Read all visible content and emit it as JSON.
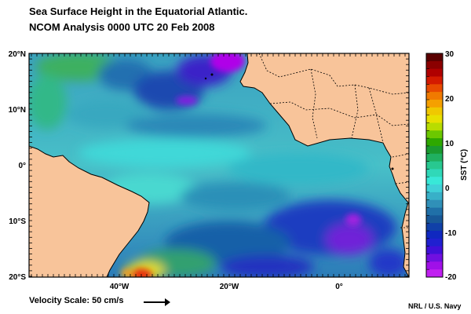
{
  "title_line1": "Sea Surface Height in the Equatorial Atlantic.",
  "title_line2": "NCOM Analysis 0000 UTC 20 Feb 2008",
  "lat_labels": [
    "20°N",
    "10°N",
    "0°",
    "10°S",
    "20°S"
  ],
  "lon_labels": [
    "40°W",
    "20°W",
    "0°"
  ],
  "colorbar": {
    "label": "SST (°C)",
    "tick_labels": [
      "30",
      "20",
      "10",
      "0",
      "-10",
      "-20"
    ],
    "colors": [
      "#5a0000",
      "#8b0000",
      "#b00000",
      "#d41a00",
      "#e84a00",
      "#f07a00",
      "#f5a000",
      "#f0c800",
      "#e8e000",
      "#b8dc00",
      "#6cc800",
      "#2ea800",
      "#1a9a30",
      "#20b060",
      "#28c890",
      "#30d8b8",
      "#38e8d8",
      "#40d0d8",
      "#38b0c8",
      "#3090b8",
      "#2070a8",
      "#185898",
      "#1040a8",
      "#1028c0",
      "#2020d0",
      "#4010d8",
      "#7010e0",
      "#a010e8",
      "#c020f0"
    ]
  },
  "colors": {
    "land": "#f8c49a",
    "coast": "#000000",
    "ocean_base": "#3aa8c8"
  },
  "velocity_label": "Velocity Scale: 50 cm/s",
  "credit": "NRL / U.S. Navy"
}
